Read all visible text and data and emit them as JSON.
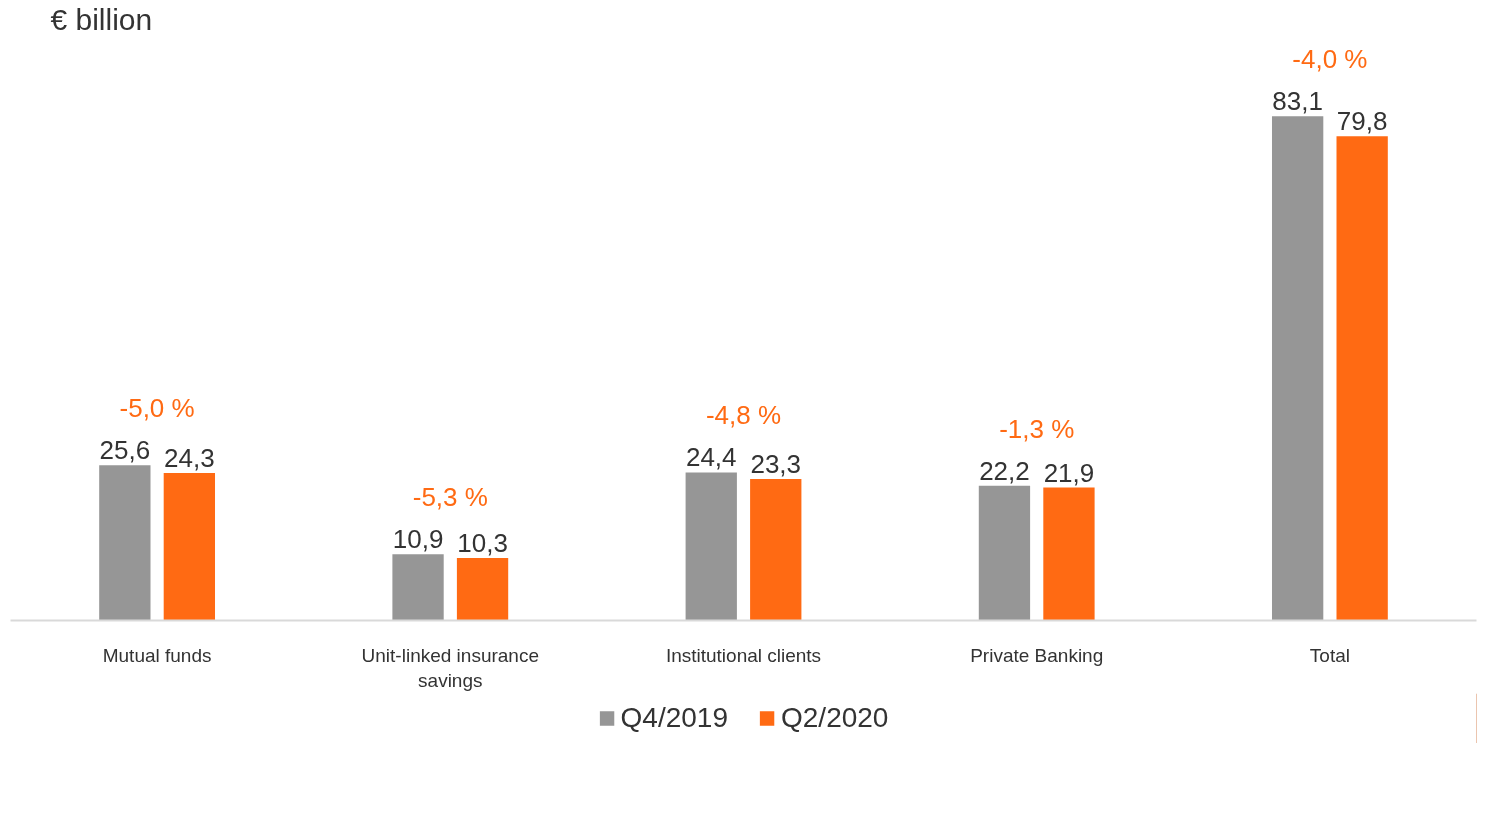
{
  "chart_data": {
    "type": "bar",
    "title": "€ billion",
    "categories": [
      "Mutual funds",
      "Unit-linked insurance savings",
      "Institutional clients",
      "Private Banking",
      "Total"
    ],
    "series": [
      {
        "name": "Q4/2019",
        "color": "#969696",
        "values": [
          25.6,
          10.9,
          24.4,
          22.2,
          83.1
        ],
        "value_labels": [
          "25,6",
          "10,9",
          "24,4",
          "22,2",
          "83,1"
        ]
      },
      {
        "name": "Q2/2020",
        "color": "#ff6a13",
        "values": [
          24.3,
          10.3,
          23.3,
          21.9,
          79.8
        ],
        "value_labels": [
          "24,3",
          "10,3",
          "23,3",
          "21,9",
          "79,8"
        ]
      }
    ],
    "annotations": [
      "-5,0 %",
      "-5,3 %",
      "-4,8 %",
      "-1,3 %",
      "-4,0 %"
    ],
    "legend": "bottom",
    "grid": false
  }
}
